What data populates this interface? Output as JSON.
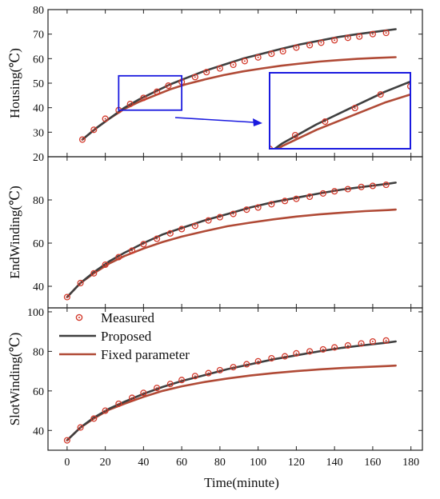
{
  "colors": {
    "measured": "#d33a2c",
    "proposed": "#3f3f3f",
    "fixed": "#b04a36",
    "zoom_box": "#1a1adf"
  },
  "xaxis": {
    "label": "Time(minute)",
    "ticks": [
      0,
      20,
      40,
      60,
      80,
      100,
      120,
      140,
      160,
      180
    ],
    "range": [
      -10,
      186
    ]
  },
  "legend": {
    "placement": "top-left of bottom panel",
    "items": [
      {
        "key": "measured",
        "label": "Measured",
        "marker": "circle-dot"
      },
      {
        "key": "proposed",
        "label": "Proposed",
        "marker": "line"
      },
      {
        "key": "fixed",
        "label": "Fixed parameter",
        "marker": "line"
      }
    ]
  },
  "chart_data": [
    {
      "type": "line",
      "panel": "housing",
      "ylabel": "Housing(℃)",
      "ylim": [
        20,
        80
      ],
      "yticks": [
        20,
        30,
        40,
        50,
        60,
        70,
        80
      ],
      "inset": {
        "shows": "zoomed view",
        "xlim": [
          27,
          60
        ],
        "ylim": [
          39,
          53
        ]
      },
      "series": [
        {
          "name": "Measured",
          "x": [
            8,
            14,
            20,
            27,
            33,
            40,
            47,
            53,
            60,
            67,
            73,
            80,
            87,
            93,
            100,
            107,
            113,
            120,
            127,
            133,
            140,
            147,
            153,
            160,
            167
          ],
          "y": [
            27,
            31,
            35.5,
            39,
            41.5,
            44,
            46.5,
            49,
            50.5,
            52.5,
            54.5,
            56,
            57.5,
            59,
            60.5,
            62,
            63,
            64.5,
            65.5,
            66.5,
            67.5,
            68.5,
            69,
            70,
            70.5
          ]
        },
        {
          "name": "Proposed",
          "x": [
            8,
            15,
            22,
            30,
            38,
            46,
            54,
            62,
            72,
            82,
            92,
            102,
            112,
            122,
            132,
            142,
            152,
            162,
            172
          ],
          "y": [
            27,
            31.5,
            35.5,
            40,
            43.5,
            46.5,
            49.5,
            52,
            55,
            57.5,
            60,
            62,
            64,
            65.8,
            67.3,
            68.8,
            70,
            71,
            72
          ]
        },
        {
          "name": "Fixed parameter",
          "x": [
            8,
            15,
            22,
            30,
            38,
            46,
            54,
            62,
            72,
            82,
            92,
            102,
            112,
            122,
            132,
            142,
            152,
            162,
            172
          ],
          "y": [
            27,
            31.5,
            35.5,
            39.5,
            42.5,
            45,
            47.5,
            49.5,
            51.5,
            53.3,
            54.8,
            56,
            57.1,
            58,
            58.8,
            59.4,
            59.9,
            60.3,
            60.6
          ]
        }
      ]
    },
    {
      "type": "line",
      "panel": "end-winding",
      "ylabel": "EndWinding(℃)",
      "ylim": [
        30,
        100
      ],
      "yticks": [
        40,
        60,
        80
      ],
      "series": [
        {
          "name": "Measured",
          "x": [
            0,
            7,
            14,
            20,
            27,
            34,
            40,
            47,
            54,
            60,
            67,
            74,
            80,
            87,
            94,
            100,
            107,
            114,
            120,
            127,
            134,
            140,
            147,
            154,
            160,
            167
          ],
          "y": [
            35,
            41.5,
            46,
            50,
            53.5,
            56.5,
            59.5,
            62,
            64.5,
            66.5,
            68,
            70.5,
            72,
            73.5,
            75.5,
            76.5,
            78,
            79.5,
            80.5,
            81.5,
            83,
            84,
            85,
            86,
            86.5,
            87
          ]
        },
        {
          "name": "Proposed",
          "x": [
            0,
            7,
            14,
            22,
            30,
            40,
            50,
            60,
            72,
            84,
            96,
            108,
            120,
            132,
            144,
            156,
            168,
            172
          ],
          "y": [
            35,
            41.5,
            46.5,
            51.5,
            55.5,
            60,
            64,
            67,
            70.5,
            73.5,
            76.5,
            79,
            81,
            83,
            84.8,
            86.2,
            87.5,
            88
          ]
        },
        {
          "name": "Fixed parameter",
          "x": [
            0,
            7,
            14,
            22,
            30,
            40,
            50,
            60,
            72,
            84,
            96,
            108,
            120,
            132,
            144,
            156,
            168,
            172
          ],
          "y": [
            35,
            41.5,
            46,
            50.5,
            54,
            57.5,
            60.5,
            63,
            65.5,
            67.8,
            69.5,
            71,
            72.3,
            73.3,
            74.1,
            74.8,
            75.3,
            75.5
          ]
        }
      ]
    },
    {
      "type": "line",
      "panel": "slot-winding",
      "ylabel": "SlotWinding(℃)",
      "ylim": [
        30,
        102
      ],
      "yticks": [
        40,
        60,
        80,
        100
      ],
      "series": [
        {
          "name": "Measured",
          "x": [
            0,
            7,
            14,
            20,
            27,
            34,
            40,
            47,
            54,
            60,
            67,
            74,
            80,
            87,
            94,
            100,
            107,
            114,
            120,
            127,
            134,
            140,
            147,
            154,
            160,
            167
          ],
          "y": [
            35,
            41.5,
            46,
            50,
            53.5,
            56.5,
            59,
            61.5,
            63.5,
            65.5,
            67.5,
            69,
            70.5,
            72,
            73.5,
            75,
            76.5,
            77.5,
            79,
            80,
            81,
            82,
            83,
            84,
            85,
            85.5
          ]
        },
        {
          "name": "Proposed",
          "x": [
            0,
            7,
            14,
            22,
            30,
            40,
            50,
            60,
            72,
            84,
            96,
            108,
            120,
            132,
            144,
            156,
            168,
            172
          ],
          "y": [
            35,
            41.5,
            46.5,
            51,
            54.5,
            58.5,
            62,
            65,
            68,
            71,
            73.5,
            76,
            78,
            80,
            81.8,
            83.2,
            84.5,
            85
          ]
        },
        {
          "name": "Fixed parameter",
          "x": [
            0,
            7,
            14,
            22,
            30,
            40,
            50,
            60,
            72,
            84,
            96,
            108,
            120,
            132,
            144,
            156,
            168,
            172
          ],
          "y": [
            35,
            41.5,
            46,
            50.5,
            53.5,
            57,
            60,
            62.3,
            64.5,
            66.3,
            67.8,
            69,
            70,
            70.9,
            71.6,
            72.1,
            72.6,
            72.8
          ]
        }
      ]
    }
  ]
}
